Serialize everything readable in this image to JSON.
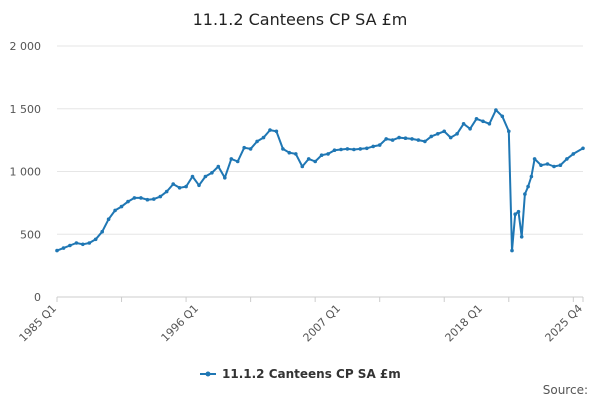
{
  "chart_data": {
    "type": "line",
    "title": "11.1.2 Canteens CP SA £m",
    "xlabel": "",
    "ylabel": "",
    "ylim": [
      0,
      2000
    ],
    "y_ticks": [
      0,
      500,
      1000,
      1500,
      2000
    ],
    "y_tick_labels": [
      "0",
      "500",
      "1 000",
      "1 500",
      "2 000"
    ],
    "x_tick_labels": [
      "1985 Q1",
      "1996 Q1",
      "2007 Q1",
      "2018 Q1",
      "2025 Q4"
    ],
    "grid": "horizontal",
    "legend_position": "bottom",
    "color": "#1f77b4",
    "source_label": "Source:",
    "series": [
      {
        "name": "11.1.2 Canteens CP SA £m",
        "x": [
          "1985 Q1",
          "1985 Q3",
          "1986 Q1",
          "1986 Q3",
          "1987 Q1",
          "1987 Q3",
          "1988 Q1",
          "1988 Q3",
          "1989 Q1",
          "1989 Q3",
          "1990 Q1",
          "1990 Q3",
          "1991 Q1",
          "1991 Q3",
          "1992 Q1",
          "1992 Q3",
          "1993 Q1",
          "1993 Q3",
          "1994 Q1",
          "1994 Q3",
          "1995 Q1",
          "1995 Q3",
          "1996 Q1",
          "1996 Q3",
          "1997 Q1",
          "1997 Q3",
          "1998 Q1",
          "1998 Q3",
          "1999 Q1",
          "1999 Q3",
          "2000 Q1",
          "2000 Q3",
          "2001 Q1",
          "2001 Q3",
          "2002 Q1",
          "2002 Q3",
          "2003 Q1",
          "2003 Q3",
          "2004 Q1",
          "2004 Q3",
          "2005 Q1",
          "2005 Q3",
          "2006 Q1",
          "2006 Q3",
          "2007 Q1",
          "2007 Q3",
          "2008 Q1",
          "2008 Q3",
          "2009 Q1",
          "2009 Q3",
          "2010 Q1",
          "2010 Q3",
          "2011 Q1",
          "2011 Q3",
          "2012 Q1",
          "2012 Q3",
          "2013 Q1",
          "2013 Q3",
          "2014 Q1",
          "2014 Q3",
          "2015 Q1",
          "2015 Q3",
          "2016 Q1",
          "2016 Q3",
          "2017 Q1",
          "2017 Q3",
          "2018 Q1",
          "2018 Q3",
          "2019 Q1",
          "2019 Q3",
          "2020 Q1",
          "2020 Q2",
          "2020 Q3",
          "2020 Q4",
          "2021 Q1",
          "2021 Q2",
          "2021 Q3",
          "2021 Q4",
          "2022 Q1",
          "2022 Q3",
          "2023 Q1",
          "2023 Q3",
          "2024 Q1",
          "2024 Q3",
          "2025 Q1",
          "2025 Q4"
        ],
        "values": [
          370,
          390,
          410,
          430,
          420,
          430,
          460,
          520,
          620,
          690,
          720,
          760,
          790,
          790,
          775,
          780,
          800,
          840,
          900,
          870,
          880,
          960,
          890,
          960,
          990,
          1040,
          950,
          1100,
          1080,
          1190,
          1180,
          1240,
          1270,
          1330,
          1320,
          1180,
          1150,
          1140,
          1040,
          1100,
          1080,
          1130,
          1140,
          1170,
          1175,
          1180,
          1175,
          1180,
          1185,
          1200,
          1210,
          1260,
          1250,
          1270,
          1265,
          1260,
          1250,
          1240,
          1280,
          1300,
          1320,
          1270,
          1300,
          1380,
          1340,
          1420,
          1400,
          1380,
          1490,
          1440,
          1320,
          370,
          660,
          680,
          480,
          820,
          880,
          960,
          1100,
          1050,
          1060,
          1040,
          1050,
          1100,
          1140,
          1185
        ]
      }
    ]
  }
}
